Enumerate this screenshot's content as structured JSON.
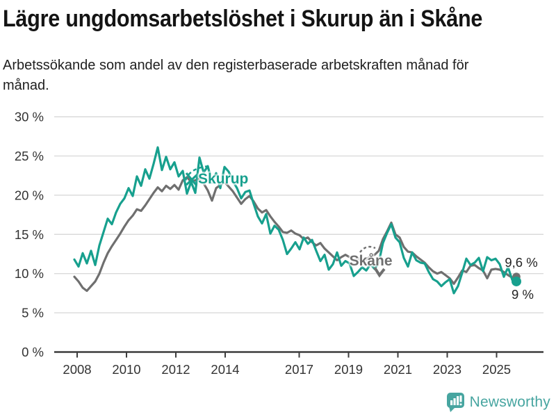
{
  "header": {
    "title": "Lägre ungdomsarbetslöshet i Skurup än i Skåne",
    "subtitle": "Arbetssökande som andel av den registerbaserade arbetskraften månad för månad."
  },
  "colors": {
    "skurup": "#17a08e",
    "skane": "#6f6f6f",
    "grid": "#dadada",
    "axis": "#3c3c3c",
    "tick_text": "#333333",
    "brand_teal": "#47a5a0"
  },
  "chart_data": {
    "type": "line",
    "title": "Lägre ungdomsarbetslöshet i Skurup än i Skåne",
    "subtitle": "Arbetssökande som andel av den registerbaserade arbetskraften månad för månad.",
    "x_unit": "year (monthly observations)",
    "x_start": 2008.0,
    "x_step_years": 0.166667,
    "x_end": 2025.67,
    "ylim": [
      0,
      30
    ],
    "grid": "horizontal",
    "yticks": [
      {
        "v": 0,
        "label": "0 %"
      },
      {
        "v": 5,
        "label": "5 %"
      },
      {
        "v": 10,
        "label": "10 %"
      },
      {
        "v": 15,
        "label": "15 %"
      },
      {
        "v": 20,
        "label": "20 %"
      },
      {
        "v": 25,
        "label": "25 %"
      },
      {
        "v": 30,
        "label": "30 %"
      }
    ],
    "xticks": [
      {
        "year": 2008,
        "label": "2008"
      },
      {
        "year": 2010,
        "label": "2010"
      },
      {
        "year": 2012,
        "label": "2012"
      },
      {
        "year": 2014,
        "label": "2014"
      },
      {
        "year": 2017,
        "label": "2017"
      },
      {
        "year": 2019,
        "label": "2019"
      },
      {
        "year": 2021,
        "label": "2021"
      },
      {
        "year": 2023,
        "label": "2023"
      },
      {
        "year": 2025,
        "label": "2025"
      }
    ],
    "series": [
      {
        "name": "Skåne",
        "color": "#6f6f6f",
        "end_label": "9,6 %",
        "end_value": 9.6,
        "values": [
          9.6,
          9.0,
          8.2,
          7.8,
          8.4,
          9.0,
          10.0,
          11.4,
          12.6,
          13.5,
          14.3,
          15.1,
          16.0,
          16.8,
          17.4,
          18.2,
          18.0,
          18.7,
          19.5,
          20.3,
          21.0,
          20.5,
          21.2,
          20.8,
          21.3,
          20.7,
          21.9,
          22.3,
          21.7,
          21.9,
          22.1,
          21.5,
          20.6,
          19.3,
          20.9,
          21.3,
          21.7,
          21.1,
          20.5,
          19.7,
          18.9,
          19.5,
          19.9,
          19.2,
          18.3,
          17.8,
          18.1,
          17.3,
          16.6,
          16.0,
          15.3,
          15.2,
          15.5,
          15.1,
          14.9,
          14.4,
          14.6,
          14.0,
          13.6,
          13.9,
          13.2,
          12.7,
          12.2,
          11.7,
          12.1,
          12.4,
          12.1,
          11.7,
          12.0,
          11.5,
          11.8,
          12.2,
          12.4,
          12.9,
          14.4,
          15.4,
          16.5,
          15.0,
          14.6,
          13.4,
          12.8,
          12.7,
          12.2,
          11.8,
          11.4,
          10.8,
          10.3,
          10.0,
          10.2,
          9.8,
          9.4,
          8.7,
          9.5,
          10.4,
          10.2,
          11.0,
          11.1,
          10.7,
          10.4,
          9.4,
          10.5,
          10.6,
          10.5,
          10.2,
          9.8,
          9.5,
          9.6
        ]
      },
      {
        "name": "Skurup",
        "color": "#17a08e",
        "end_label": "9 %",
        "end_value": 9.0,
        "values": [
          11.8,
          10.9,
          12.6,
          11.3,
          12.9,
          11.1,
          13.6,
          15.3,
          17.0,
          16.3,
          17.8,
          18.9,
          19.6,
          20.9,
          19.9,
          22.4,
          21.2,
          23.3,
          22.1,
          24.0,
          26.1,
          23.2,
          24.9,
          23.3,
          24.2,
          22.4,
          23.1,
          20.2,
          21.7,
          20.3,
          24.8,
          22.9,
          23.7,
          21.6,
          22.8,
          20.9,
          23.6,
          23.0,
          21.8,
          20.9,
          19.6,
          20.4,
          20.6,
          18.9,
          17.3,
          16.4,
          17.6,
          15.1,
          16.1,
          15.6,
          14.3,
          12.5,
          13.2,
          14.0,
          13.1,
          14.6,
          13.8,
          14.3,
          12.9,
          11.6,
          12.4,
          10.5,
          11.2,
          12.7,
          11.0,
          11.6,
          11.3,
          9.7,
          10.2,
          10.8,
          10.4,
          11.2,
          10.6,
          11.4,
          13.9,
          15.2,
          16.3,
          14.6,
          14.0,
          12.0,
          10.9,
          12.7,
          11.7,
          11.4,
          11.3,
          10.2,
          9.3,
          9.0,
          8.4,
          8.9,
          9.3,
          7.5,
          8.4,
          10.1,
          11.9,
          11.1,
          11.4,
          12.0,
          10.3,
          12.1,
          11.7,
          11.9,
          11.2,
          9.6,
          10.8,
          9.2,
          9.0
        ]
      }
    ],
    "annotations": {
      "skurup_label": {
        "text": "Skurup",
        "year": 2013.95,
        "value": 22.0
      },
      "skane_label": {
        "text": "Skåne",
        "year": 2019.85,
        "value": 11.55
      }
    },
    "legend_position": "inline-labels"
  },
  "footer": {
    "brand": "Newsworthy"
  }
}
